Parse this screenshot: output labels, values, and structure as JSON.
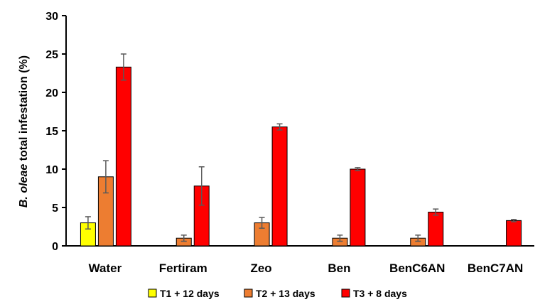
{
  "chart_data": {
    "type": "bar",
    "ylabel_italic": "B. oleae",
    "ylabel_rest": " total infestation (%)",
    "ylim": [
      0,
      30
    ],
    "yticks": [
      "0",
      "5",
      "10",
      "15",
      "20",
      "25",
      "30"
    ],
    "categories": [
      "Water",
      "Fertiram",
      "Zeo",
      "Ben",
      "BenC6AN",
      "BenC7AN"
    ],
    "series": [
      {
        "name": "T1 + 12 days",
        "color": "#FFFF00",
        "values": [
          3.0,
          null,
          null,
          null,
          null,
          null
        ],
        "errors": [
          0.8,
          null,
          null,
          null,
          null,
          null
        ]
      },
      {
        "name": "T2 + 13 days",
        "color": "#ED7D31",
        "values": [
          9.0,
          1.0,
          3.0,
          1.0,
          1.0,
          null
        ],
        "errors": [
          2.1,
          0.4,
          0.7,
          0.4,
          0.4,
          null
        ]
      },
      {
        "name": "T3 + 8 days",
        "color": "#FF0000",
        "values": [
          23.3,
          7.8,
          15.5,
          10.0,
          4.4,
          3.3
        ],
        "errors": [
          1.7,
          2.5,
          0.4,
          0.2,
          0.4,
          0.15
        ]
      }
    ],
    "legend_position": "bottom",
    "grid": false
  }
}
